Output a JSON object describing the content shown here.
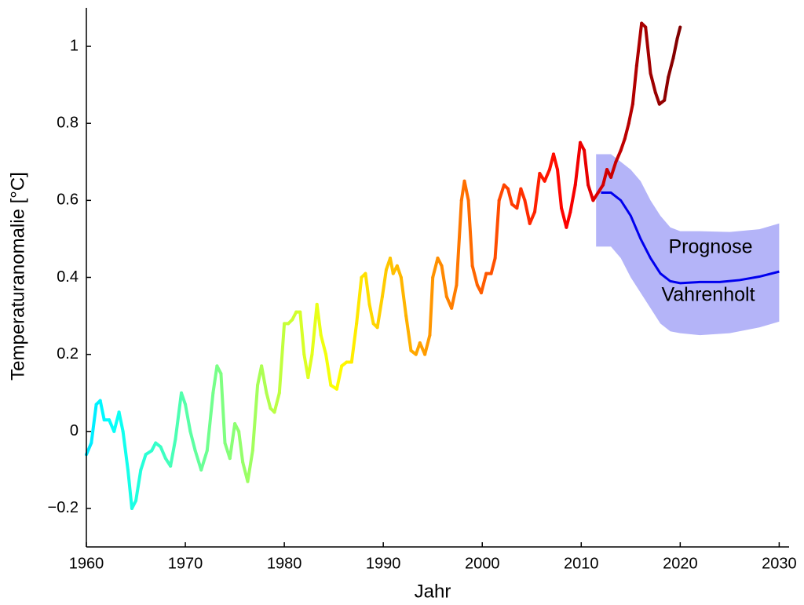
{
  "chart_data": {
    "type": "line",
    "xlabel": "Jahr",
    "ylabel": "Temperaturanomalie [°C]",
    "xlim": [
      1960,
      2031
    ],
    "ylim": [
      -0.3,
      1.1
    ],
    "xticks": [
      1960,
      1970,
      1980,
      1990,
      2000,
      2010,
      2020,
      2030
    ],
    "yticks": [
      {
        "value": -0.2,
        "label": "−0.2"
      },
      0,
      0.2,
      0.4,
      0.6,
      0.8,
      1
    ],
    "series": [
      {
        "colormap": "jet",
        "x": [
          1960.0,
          1960.5,
          1961.0,
          1961.4,
          1961.8,
          1962.3,
          1962.8,
          1963.3,
          1963.7,
          1964.2,
          1964.6,
          1965.0,
          1965.5,
          1966.0,
          1966.6,
          1967.0,
          1967.5,
          1968.0,
          1968.5,
          1969.0,
          1969.6,
          1970.0,
          1970.5,
          1971.0,
          1971.6,
          1972.2,
          1972.8,
          1973.2,
          1973.6,
          1974.0,
          1974.5,
          1975.0,
          1975.4,
          1975.8,
          1976.3,
          1976.8,
          1977.3,
          1977.7,
          1978.2,
          1978.6,
          1979.0,
          1979.5,
          1980.0,
          1980.4,
          1980.8,
          1981.2,
          1981.6,
          1982.0,
          1982.4,
          1982.8,
          1983.3,
          1983.7,
          1984.2,
          1984.7,
          1985.3,
          1985.8,
          1986.3,
          1986.8,
          1987.3,
          1987.8,
          1988.2,
          1988.6,
          1989.0,
          1989.4,
          1989.9,
          1990.3,
          1990.7,
          1991.0,
          1991.4,
          1991.8,
          1992.3,
          1992.8,
          1993.3,
          1993.7,
          1994.2,
          1994.7,
          1995.0,
          1995.5,
          1995.9,
          1996.4,
          1996.9,
          1997.4,
          1997.9,
          1998.2,
          1998.6,
          1999.0,
          1999.5,
          1999.9,
          2000.4,
          2000.9,
          2001.3,
          2001.7,
          2002.2,
          2002.6,
          2003.0,
          2003.5,
          2003.9,
          2004.3,
          2004.8,
          2005.3,
          2005.8,
          2006.3,
          2006.8,
          2007.2,
          2007.6,
          2008.0,
          2008.5,
          2008.9,
          2009.4,
          2009.9,
          2010.3,
          2010.7,
          2011.2,
          2011.7,
          2012.2,
          2012.6,
          2013.0,
          2013.5,
          2014.0,
          2014.4,
          2014.8,
          2015.2,
          2015.6,
          2016.1,
          2016.5,
          2017.0,
          2017.5,
          2017.9,
          2018.4,
          2018.8,
          2019.3,
          2019.7,
          2020.0
        ],
        "values": [
          -0.06,
          -0.03,
          0.07,
          0.08,
          0.03,
          0.03,
          0.0,
          0.05,
          0.0,
          -0.1,
          -0.2,
          -0.18,
          -0.1,
          -0.06,
          -0.05,
          -0.03,
          -0.04,
          -0.07,
          -0.09,
          -0.02,
          0.1,
          0.07,
          0.0,
          -0.05,
          -0.1,
          -0.05,
          0.1,
          0.17,
          0.15,
          -0.03,
          -0.07,
          0.02,
          0.0,
          -0.08,
          -0.13,
          -0.05,
          0.12,
          0.17,
          0.1,
          0.06,
          0.05,
          0.1,
          0.28,
          0.28,
          0.29,
          0.31,
          0.31,
          0.2,
          0.14,
          0.2,
          0.33,
          0.25,
          0.2,
          0.12,
          0.11,
          0.17,
          0.18,
          0.18,
          0.28,
          0.4,
          0.41,
          0.33,
          0.28,
          0.27,
          0.35,
          0.42,
          0.45,
          0.41,
          0.43,
          0.4,
          0.3,
          0.21,
          0.2,
          0.23,
          0.2,
          0.25,
          0.4,
          0.45,
          0.43,
          0.35,
          0.32,
          0.38,
          0.6,
          0.65,
          0.6,
          0.43,
          0.38,
          0.36,
          0.41,
          0.41,
          0.45,
          0.6,
          0.64,
          0.63,
          0.59,
          0.58,
          0.63,
          0.6,
          0.54,
          0.57,
          0.67,
          0.65,
          0.68,
          0.72,
          0.68,
          0.58,
          0.53,
          0.57,
          0.64,
          0.75,
          0.73,
          0.64,
          0.6,
          0.62,
          0.64,
          0.68,
          0.66,
          0.7,
          0.73,
          0.76,
          0.8,
          0.85,
          0.95,
          1.06,
          1.05,
          0.93,
          0.88,
          0.85,
          0.86,
          0.92,
          0.97,
          1.02,
          1.05
        ]
      },
      {
        "color": "#0000ee",
        "x": [
          2012,
          2013,
          2014,
          2015,
          2016,
          2017,
          2018,
          2019,
          2020,
          2022,
          2024,
          2026,
          2028,
          2030
        ],
        "values": [
          0.62,
          0.62,
          0.6,
          0.56,
          0.5,
          0.45,
          0.41,
          0.39,
          0.385,
          0.388,
          0.388,
          0.393,
          0.402,
          0.415
        ]
      }
    ],
    "band": {
      "color": "#b4b4f8",
      "x": [
        2011.5,
        2013,
        2014,
        2015,
        2016,
        2017,
        2018,
        2019,
        2020,
        2022,
        2025,
        2028,
        2030
      ],
      "upper": [
        0.72,
        0.72,
        0.7,
        0.68,
        0.65,
        0.6,
        0.56,
        0.53,
        0.52,
        0.52,
        0.518,
        0.525,
        0.54
      ],
      "lower": [
        0.48,
        0.48,
        0.45,
        0.4,
        0.36,
        0.32,
        0.28,
        0.26,
        0.255,
        0.25,
        0.255,
        0.27,
        0.285
      ]
    },
    "annotations": [
      "Prognose",
      "Vahrenholt"
    ]
  }
}
